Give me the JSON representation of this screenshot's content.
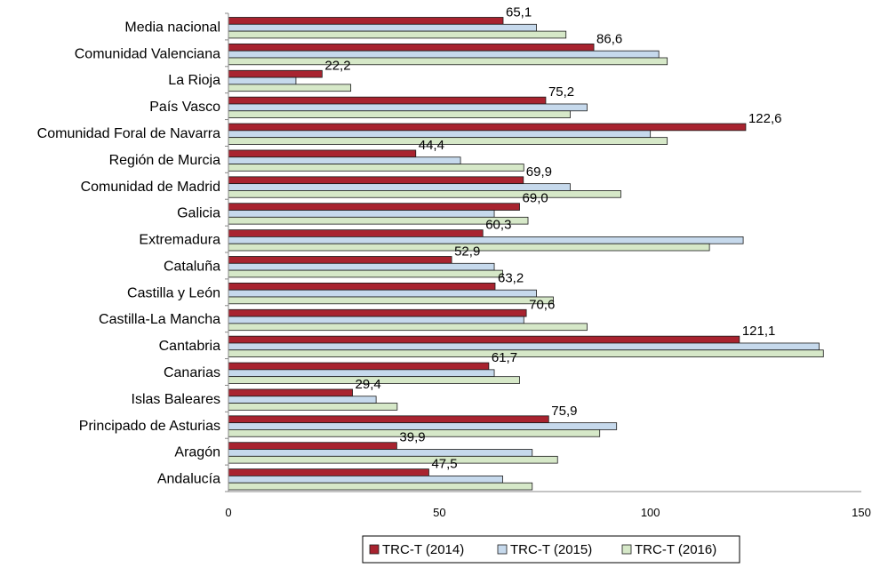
{
  "chart_data": {
    "type": "bar",
    "orientation": "horizontal",
    "title": "",
    "xlabel": "",
    "ylabel": "",
    "xlim": [
      0,
      150
    ],
    "xticks": [
      "0",
      "50",
      "100",
      "150"
    ],
    "grid": false,
    "legend_position": "bottom-right",
    "categories": [
      "Media nacional",
      "Comunidad Valenciana",
      "La Rioja",
      "País Vasco",
      "Comunidad Foral de Navarra",
      "Región de Murcia",
      "Comunidad de Madrid",
      "Galicia",
      "Extremadura",
      "Cataluña",
      "Castilla y León",
      "Castilla-La Mancha",
      "Cantabria",
      "Canarias",
      "Islas Baleares",
      "Principado de Asturias",
      "Aragón",
      "Andalucía"
    ],
    "series": [
      {
        "name": "TRC-T (2014)",
        "color": "#a8232f",
        "values": [
          65.1,
          86.6,
          22.2,
          75.2,
          122.6,
          44.4,
          69.9,
          69.0,
          60.3,
          52.9,
          63.2,
          70.6,
          121.1,
          61.7,
          29.4,
          75.9,
          39.9,
          47.5
        ],
        "labels": [
          "65,1",
          "86,6",
          "22,2",
          "75,2",
          "122,6",
          "44,4",
          "69,9",
          "69,0",
          "60,3",
          "52,9",
          "63,2",
          "70,6",
          "121,1",
          "61,7",
          "29,4",
          "75,9",
          "39,9",
          "47,5"
        ]
      },
      {
        "name": "TRC-T (2015)",
        "color": "#c6d9ec",
        "values": [
          73,
          102,
          16,
          85,
          100,
          55,
          81,
          63,
          122,
          63,
          73,
          70,
          140,
          63,
          35,
          92,
          72,
          65
        ]
      },
      {
        "name": "TRC-T (2016)",
        "color": "#d6e8c8",
        "values": [
          80,
          104,
          29,
          81,
          104,
          70,
          93,
          71,
          114,
          65,
          77,
          85,
          141,
          69,
          40,
          88,
          78,
          72
        ]
      }
    ]
  }
}
